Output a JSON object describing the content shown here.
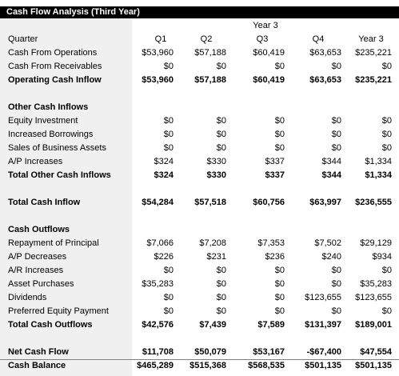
{
  "title": "Cash Flow Analysis (Third Year)",
  "year_header": "Year 3",
  "header_row": {
    "label": "Quarter",
    "values": [
      "Q1",
      "Q2",
      "Q3",
      "Q4",
      "Year 3"
    ]
  },
  "rows": [
    {
      "label": "Cash From Operations",
      "values": [
        "$53,960",
        "$57,188",
        "$60,419",
        "$63,653",
        "$235,221"
      ],
      "bold": false
    },
    {
      "label": "Cash From Receivables",
      "values": [
        "$0",
        "$0",
        "$0",
        "$0",
        "$0"
      ],
      "bold": false
    },
    {
      "label": "Operating Cash Inflow",
      "values": [
        "$53,960",
        "$57,188",
        "$60,419",
        "$63,653",
        "$235,221"
      ],
      "bold": true
    },
    {
      "label": "Other Cash Inflows",
      "values": [
        "",
        "",
        "",
        "",
        ""
      ],
      "bold": true
    },
    {
      "label": "Equity Investment",
      "values": [
        "$0",
        "$0",
        "$0",
        "$0",
        "$0"
      ],
      "bold": false
    },
    {
      "label": "Increased Borrowings",
      "values": [
        "$0",
        "$0",
        "$0",
        "$0",
        "$0"
      ],
      "bold": false
    },
    {
      "label": "Sales of Business Assets",
      "values": [
        "$0",
        "$0",
        "$0",
        "$0",
        "$0"
      ],
      "bold": false
    },
    {
      "label": "A/P Increases",
      "values": [
        "$324",
        "$330",
        "$337",
        "$344",
        "$1,334"
      ],
      "bold": false
    },
    {
      "label": "Total Other Cash Inflows",
      "values": [
        "$324",
        "$330",
        "$337",
        "$344",
        "$1,334"
      ],
      "bold": true
    },
    {
      "label": "Total Cash Inflow",
      "values": [
        "$54,284",
        "$57,518",
        "$60,756",
        "$63,997",
        "$236,555"
      ],
      "bold": true
    },
    {
      "label": "Cash Outflows",
      "values": [
        "",
        "",
        "",
        "",
        ""
      ],
      "bold": true
    },
    {
      "label": "Repayment of Principal",
      "values": [
        "$7,066",
        "$7,208",
        "$7,353",
        "$7,502",
        "$29,129"
      ],
      "bold": false
    },
    {
      "label": "A/P Decreases",
      "values": [
        "$226",
        "$231",
        "$236",
        "$240",
        "$934"
      ],
      "bold": false
    },
    {
      "label": "A/R Increases",
      "values": [
        "$0",
        "$0",
        "$0",
        "$0",
        "$0"
      ],
      "bold": false
    },
    {
      "label": "Asset Purchases",
      "values": [
        "$35,283",
        "$0",
        "$0",
        "$0",
        "$35,283"
      ],
      "bold": false
    },
    {
      "label": "Dividends",
      "values": [
        "$0",
        "$0",
        "$0",
        "$123,655",
        "$123,655"
      ],
      "bold": false
    },
    {
      "label": "Preferred Equity Payment",
      "values": [
        "$0",
        "$0",
        "$0",
        "$0",
        "$0"
      ],
      "bold": false
    },
    {
      "label": "Total Cash Outflows",
      "values": [
        "$42,576",
        "$7,439",
        "$7,589",
        "$131,397",
        "$189,001"
      ],
      "bold": true
    },
    {
      "label": "Net Cash Flow",
      "values": [
        "$11,708",
        "$50,079",
        "$53,167",
        "-$67,400",
        "$47,554"
      ],
      "bold": true
    },
    {
      "label": "Cash Balance",
      "values": [
        "$465,289",
        "$515,368",
        "$568,535",
        "$501,135",
        "$501,135"
      ],
      "bold": true
    }
  ]
}
